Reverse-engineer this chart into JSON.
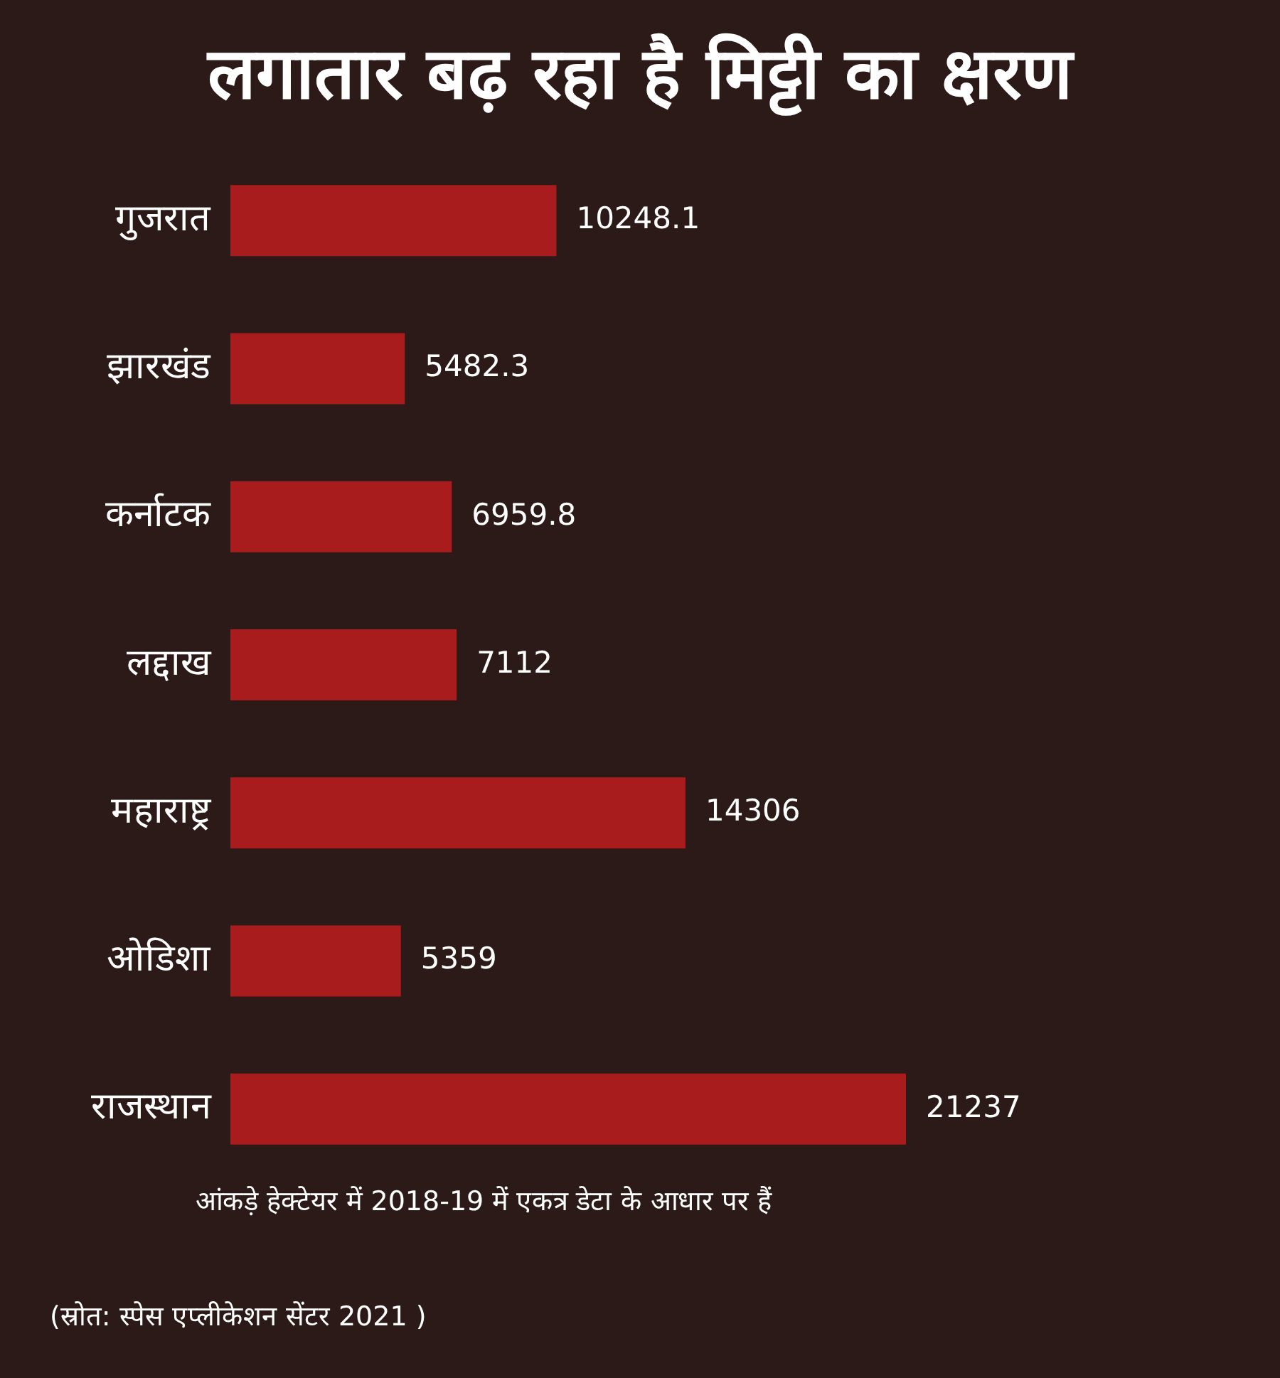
{
  "chart_data": {
    "type": "bar",
    "orientation": "horizontal",
    "title": "लगातार बढ़ रहा है मिट्टी का क्षरण",
    "categories": [
      "गुजरात",
      "झारखंड",
      "कर्नाटक",
      "लद्दाख",
      "महाराष्ट्र",
      "ओडिशा",
      "राजस्थान"
    ],
    "values": [
      10248.1,
      5482.3,
      6959.8,
      7112,
      14306,
      5359,
      21237
    ],
    "color": "#a81c1e",
    "data_labels": true,
    "tick_labels": "y",
    "annotations": [
      "आंकड़े हेक्टेयर में 2018-19 में एकत्र डेटा के आधार पर हैं",
      "(स्रोत: स्पेस एप्लीकेशन सेंटर 2021 )"
    ]
  }
}
